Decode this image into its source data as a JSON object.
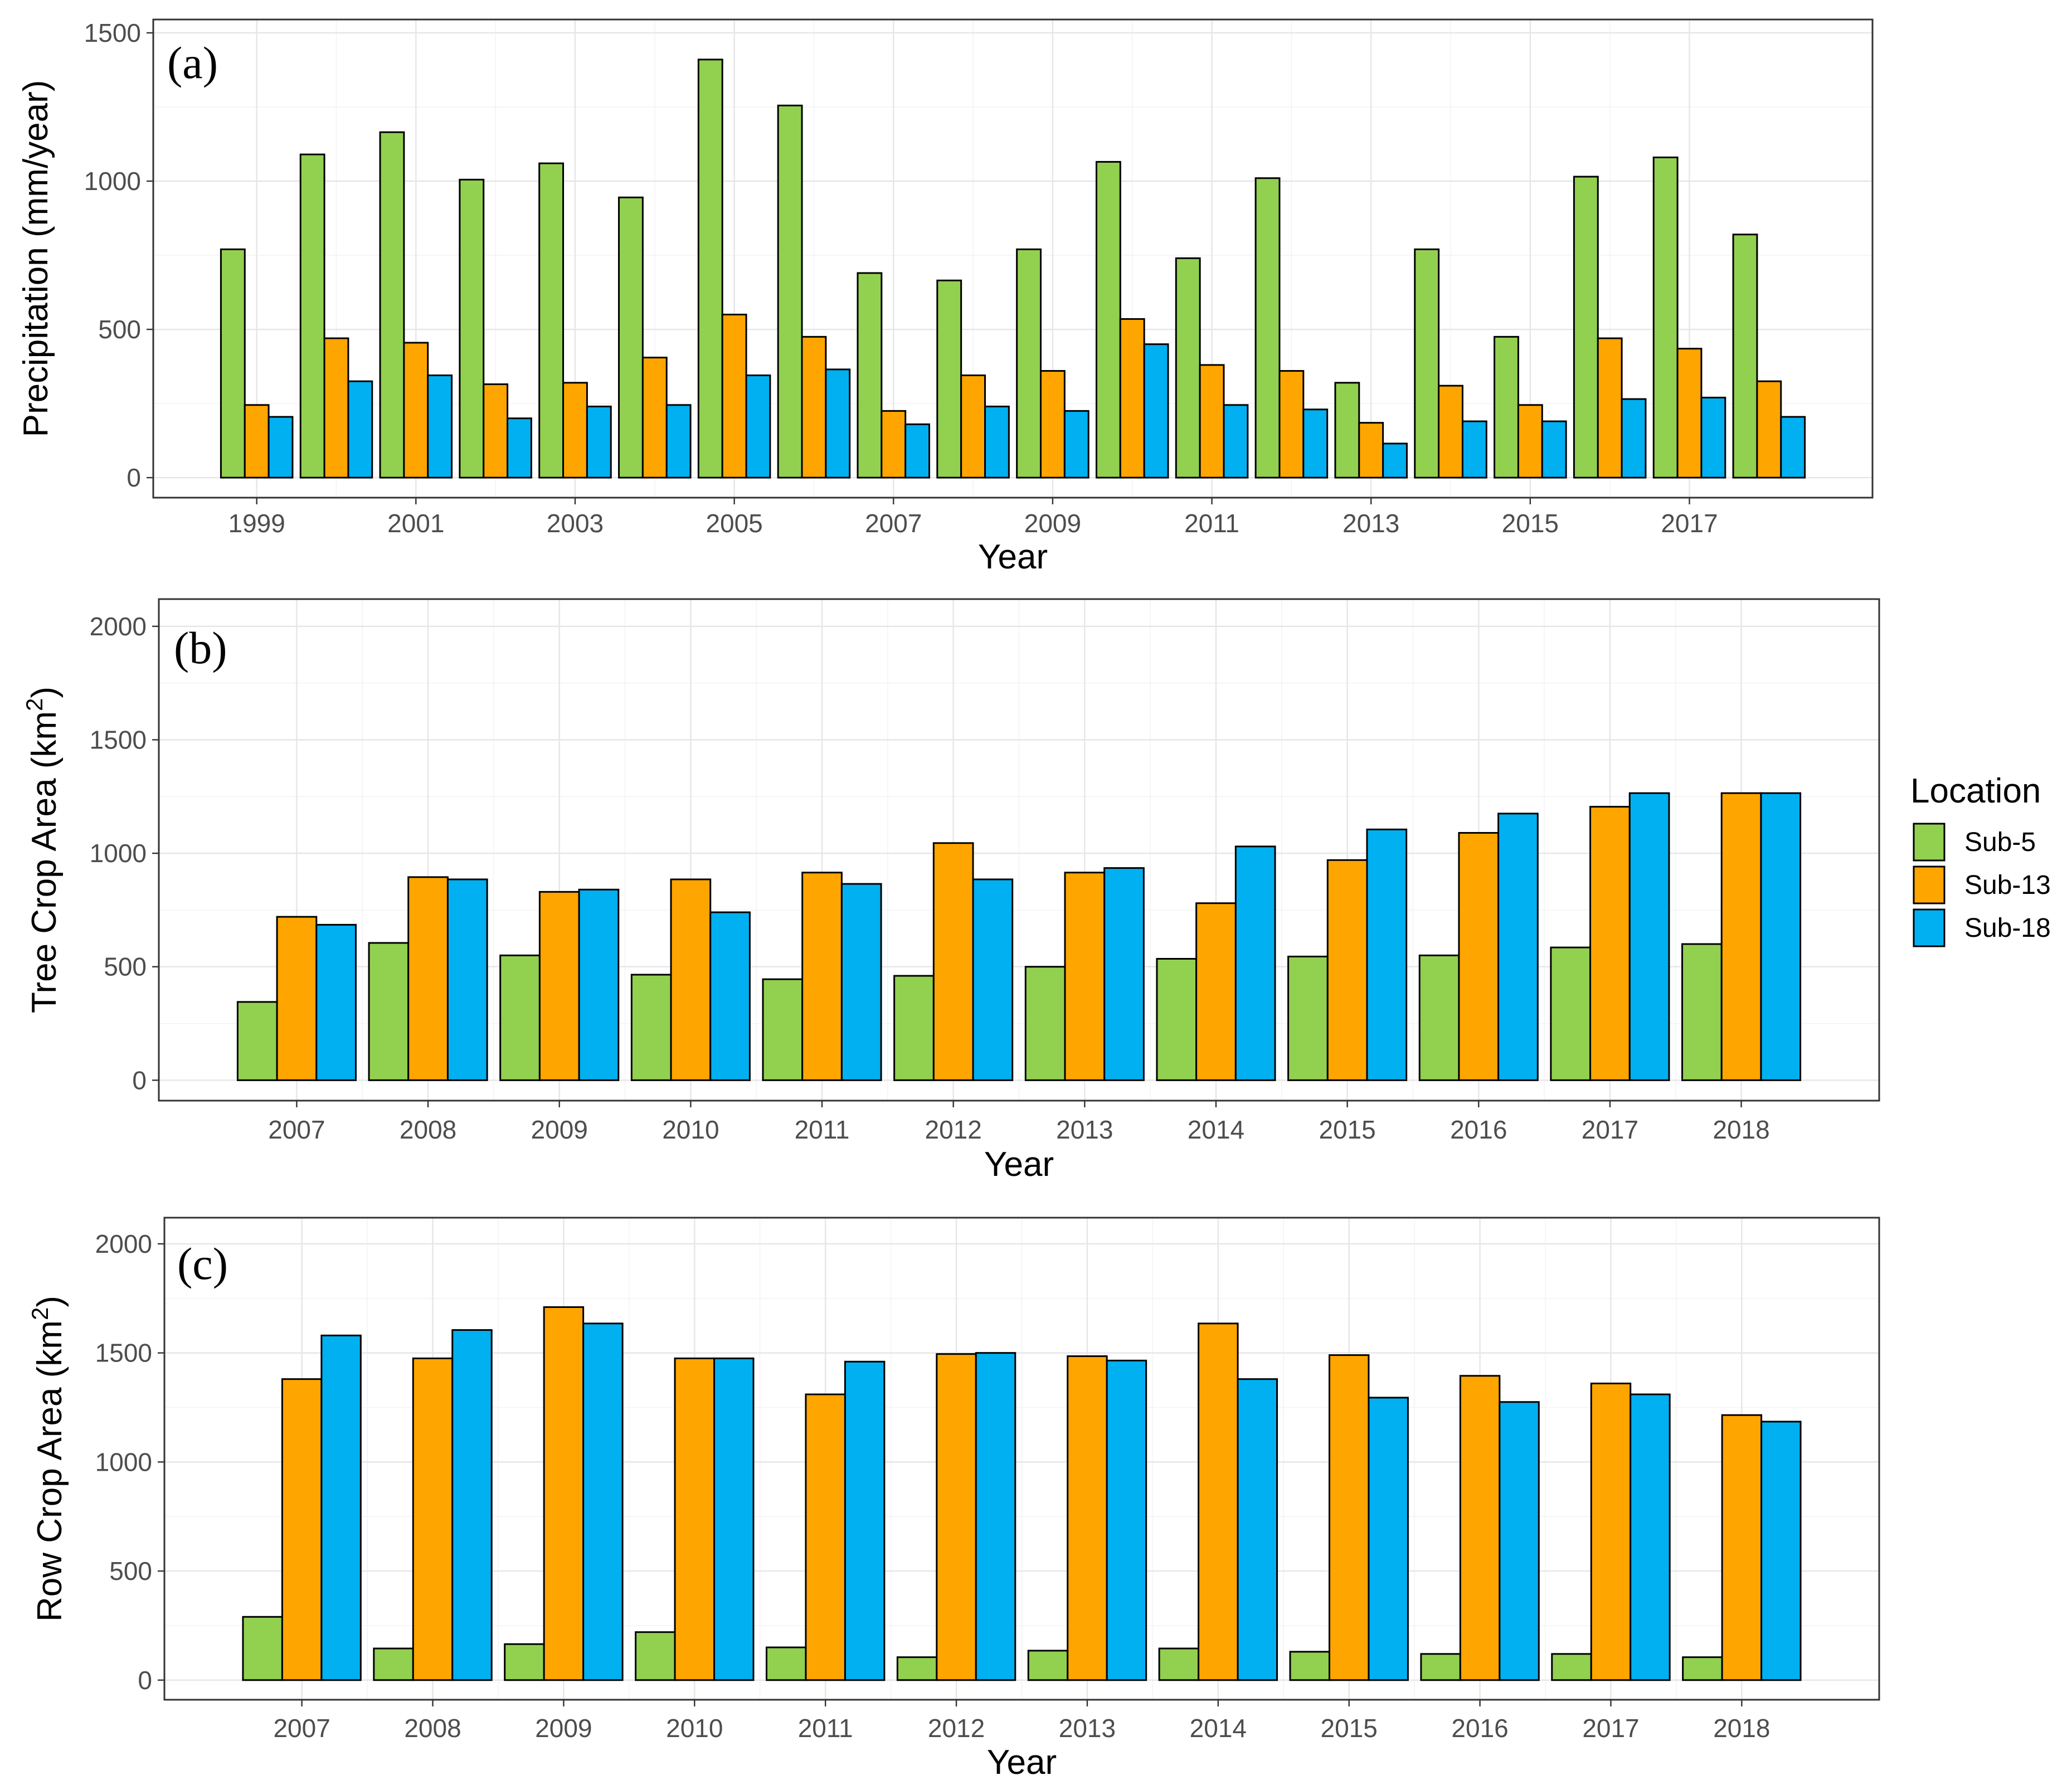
{
  "chart_data": [
    {
      "type": "bar",
      "panel_label": "(a)",
      "title": "",
      "xlabel": "Year",
      "ylabel": "Precipitation (mm/year)",
      "ylabel_sup": "",
      "ylim": [
        0,
        1500
      ],
      "yticks": [
        0,
        500,
        1000,
        1500
      ],
      "ytick_labels": [
        "0",
        "500",
        "1000",
        "1500"
      ],
      "xlim": [
        1997.7,
        2019.3
      ],
      "x_major_ticks": [
        1999,
        2001,
        2003,
        2005,
        2007,
        2009,
        2011,
        2013,
        2015,
        2017
      ],
      "x_tick_labels": [
        "1999",
        "2001",
        "2003",
        "2005",
        "2007",
        "2009",
        "2011",
        "2013",
        "2015",
        "2017"
      ],
      "grid": true,
      "categories": [
        1999,
        2000,
        2001,
        2002,
        2003,
        2004,
        2005,
        2006,
        2007,
        2008,
        2009,
        2010,
        2011,
        2012,
        2013,
        2014,
        2015,
        2016,
        2017,
        2018
      ],
      "series": [
        {
          "name": "Sub-5",
          "color": "#92D050",
          "values": [
            770,
            1090,
            1165,
            1005,
            1060,
            945,
            1410,
            1255,
            690,
            665,
            770,
            1065,
            740,
            1010,
            320,
            770,
            475,
            1015,
            1080,
            820
          ]
        },
        {
          "name": "Sub-13",
          "color": "#FFA500",
          "values": [
            245,
            470,
            455,
            315,
            320,
            405,
            550,
            475,
            225,
            345,
            360,
            535,
            380,
            360,
            185,
            310,
            245,
            470,
            435,
            325
          ]
        },
        {
          "name": "Sub-18",
          "color": "#00B0F0",
          "values": [
            205,
            325,
            345,
            200,
            240,
            245,
            345,
            365,
            180,
            240,
            225,
            450,
            245,
            230,
            115,
            190,
            190,
            265,
            270,
            205
          ]
        }
      ]
    },
    {
      "type": "bar",
      "panel_label": "(b)",
      "title": "",
      "xlabel": "Year",
      "ylabel": "Tree Crop Area (km",
      "ylabel_sup": "2",
      "ylabel_end": ")",
      "ylim": [
        0,
        2000
      ],
      "yticks": [
        0,
        500,
        1000,
        1500,
        2000
      ],
      "ytick_labels": [
        "0",
        "500",
        "1000",
        "1500",
        "2000"
      ],
      "xlim": [
        2005.95,
        2019.05
      ],
      "x_major_ticks": [
        2007,
        2008,
        2009,
        2010,
        2011,
        2012,
        2013,
        2014,
        2015,
        2016,
        2017,
        2018
      ],
      "x_tick_labels": [
        "2007",
        "2008",
        "2009",
        "2010",
        "2011",
        "2012",
        "2013",
        "2014",
        "2015",
        "2016",
        "2017",
        "2018"
      ],
      "grid": true,
      "categories": [
        2007,
        2008,
        2009,
        2010,
        2011,
        2012,
        2013,
        2014,
        2015,
        2016,
        2017,
        2018
      ],
      "series": [
        {
          "name": "Sub-5",
          "color": "#92D050",
          "values": [
            345,
            605,
            550,
            465,
            445,
            460,
            500,
            535,
            545,
            550,
            585,
            600
          ]
        },
        {
          "name": "Sub-13",
          "color": "#FFA500",
          "values": [
            720,
            895,
            830,
            885,
            915,
            1045,
            915,
            780,
            970,
            1090,
            1205,
            1265
          ]
        },
        {
          "name": "Sub-18",
          "color": "#00B0F0",
          "values": [
            685,
            885,
            840,
            740,
            865,
            885,
            935,
            1030,
            1105,
            1175,
            1265,
            1265
          ]
        }
      ]
    },
    {
      "type": "bar",
      "panel_label": "(c)",
      "title": "",
      "xlabel": "Year",
      "ylabel": "Row Crop Area (km",
      "ylabel_sup": "2",
      "ylabel_end": ")",
      "ylim": [
        0,
        2000
      ],
      "yticks": [
        0,
        500,
        1000,
        1500,
        2000
      ],
      "ytick_labels": [
        "0",
        "500",
        "1000",
        "1500",
        "2000"
      ],
      "xlim": [
        2005.95,
        2019.05
      ],
      "x_major_ticks": [
        2007,
        2008,
        2009,
        2010,
        2011,
        2012,
        2013,
        2014,
        2015,
        2016,
        2017,
        2018
      ],
      "x_tick_labels": [
        "2007",
        "2008",
        "2009",
        "2010",
        "2011",
        "2012",
        "2013",
        "2014",
        "2015",
        "2016",
        "2017",
        "2018"
      ],
      "grid": true,
      "categories": [
        2007,
        2008,
        2009,
        2010,
        2011,
        2012,
        2013,
        2014,
        2015,
        2016,
        2017,
        2018
      ],
      "series": [
        {
          "name": "Sub-5",
          "color": "#92D050",
          "values": [
            290,
            145,
            165,
            220,
            150,
            105,
            135,
            145,
            130,
            120,
            120,
            105
          ]
        },
        {
          "name": "Sub-13",
          "color": "#FFA500",
          "values": [
            1380,
            1475,
            1710,
            1475,
            1310,
            1495,
            1485,
            1635,
            1490,
            1395,
            1360,
            1215
          ]
        },
        {
          "name": "Sub-18",
          "color": "#00B0F0",
          "values": [
            1580,
            1605,
            1635,
            1475,
            1460,
            1500,
            1465,
            1380,
            1295,
            1275,
            1310,
            1185
          ]
        }
      ]
    }
  ],
  "legend": {
    "title": "Location",
    "items": [
      {
        "label": "Sub-5",
        "color": "#92D050"
      },
      {
        "label": "Sub-13",
        "color": "#FFA500"
      },
      {
        "label": "Sub-18",
        "color": "#00B0F0"
      }
    ]
  }
}
